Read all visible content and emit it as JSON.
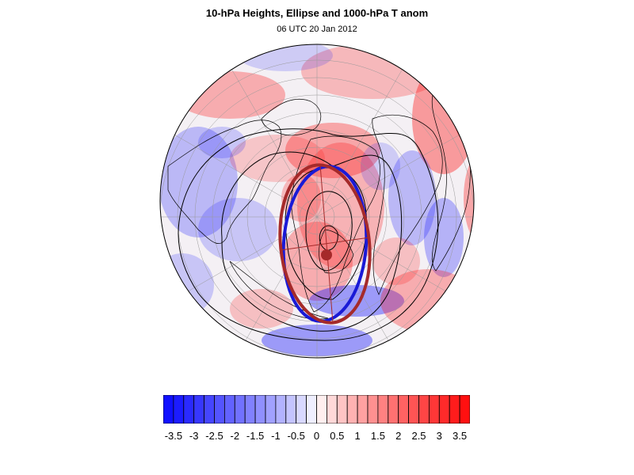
{
  "title": "10-hPa Heights, Ellipse and 1000-hPa T anom",
  "subtitle": "06 UTC 20 Jan 2012",
  "colors": {
    "cold": "#1010ff",
    "warm": "#ff1010",
    "ellipse_blue": "#1a1ad6",
    "ellipse_red": "#a52a2a",
    "contour": "#000000"
  },
  "colorbar": {
    "min": -3.75,
    "max": 3.75,
    "step": 0.25,
    "labels": [
      "-3.5",
      "-3",
      "-2.5",
      "-2",
      "-1.5",
      "-1",
      "-0.5",
      "0",
      "0.5",
      "1",
      "1.5",
      "2",
      "2.5",
      "3",
      "3.5"
    ],
    "label_values": [
      -3.5,
      -3,
      -2.5,
      -2,
      -1.5,
      -1,
      -0.5,
      0,
      0.5,
      1,
      1.5,
      2,
      2.5,
      3,
      3.5
    ]
  }
}
